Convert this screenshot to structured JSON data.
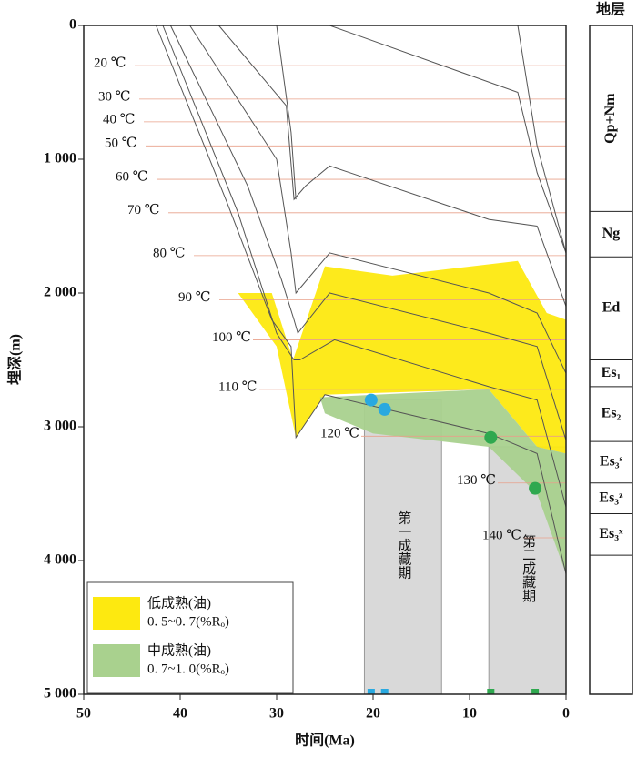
{
  "chart_data": {
    "type": "burial-history",
    "x_label": "时间(Ma)",
    "y_label": "埋深(m)",
    "xlim": [
      50,
      0
    ],
    "xticks": [
      50,
      40,
      30,
      20,
      10,
      0
    ],
    "ylim": [
      0,
      5000
    ],
    "yticks": [
      0,
      {
        "value": 1000,
        "label": "1 000"
      },
      {
        "value": 2000,
        "label": "2 000"
      },
      {
        "value": 3000,
        "label": "3 000"
      },
      {
        "value": 4000,
        "label": "4 000"
      },
      {
        "value": 5000,
        "label": "5 000"
      }
    ],
    "zones": [
      {
        "name": "低成熟(油)",
        "range": "0. 5~0. 7(%Rₒ)",
        "color": "#fde910",
        "x": [
          34,
          30.5,
          28.3,
          25,
          18,
          5,
          2,
          0,
          0,
          3,
          8,
          25,
          28,
          30
        ],
        "y": [
          2000,
          2000,
          2500,
          1800,
          1870,
          1760,
          2150,
          2200,
          3200,
          3150,
          2720,
          2760,
          3080,
          2400
        ]
      },
      {
        "name": "中成熟(油)",
        "range": "0. 7~1. 0(%Rₒ)",
        "color": "#a9d18e",
        "x": [
          25.5,
          8,
          3,
          0,
          0,
          3,
          8,
          20,
          25
        ],
        "y": [
          2780,
          2720,
          3150,
          3200,
          4100,
          3500,
          3150,
          3050,
          2900
        ]
      }
    ],
    "burial_lines": [
      {
        "x": [
          42.5,
          35,
          30.5,
          28.5,
          28,
          25,
          8,
          3,
          0
        ],
        "y": [
          0,
          1350,
          2200,
          2400,
          3080,
          2760,
          3050,
          3200,
          4100
        ]
      },
      {
        "x": [
          41.8,
          34,
          30,
          28.2,
          27.6,
          24,
          8,
          3,
          0
        ],
        "y": [
          0,
          1400,
          2300,
          2500,
          2500,
          2350,
          2700,
          2800,
          3600
        ]
      },
      {
        "x": [
          41,
          33,
          29.5,
          28.2,
          27.8,
          24.5,
          8,
          3,
          0
        ],
        "y": [
          0,
          1200,
          1900,
          2200,
          2300,
          2000,
          2300,
          2400,
          3100
        ]
      },
      {
        "x": [
          39,
          30,
          28.5,
          28,
          24.5,
          8,
          3,
          0
        ],
        "y": [
          0,
          1000,
          1700,
          2000,
          1700,
          2000,
          2150,
          2600
        ]
      },
      {
        "x": [
          36,
          29,
          28.2,
          27,
          24.5,
          8,
          3,
          0
        ],
        "y": [
          0,
          600,
          1300,
          1200,
          1050,
          1450,
          1500,
          2100
        ]
      },
      {
        "x": [
          30,
          28.5,
          28
        ],
        "y": [
          0,
          800,
          1300
        ]
      },
      {
        "x": [
          24.5,
          5,
          3,
          0
        ],
        "y": [
          0,
          500,
          1100,
          1700
        ]
      },
      {
        "x": [
          5,
          3,
          0
        ],
        "y": [
          0,
          900,
          1700
        ]
      }
    ],
    "isotherms": [
      {
        "label": "20 ℃",
        "depth": 300
      },
      {
        "label": "30 ℃",
        "depth": 550
      },
      {
        "label": "40 ℃",
        "depth": 720
      },
      {
        "label": "50 ℃",
        "depth": 900
      },
      {
        "label": "60 ℃",
        "depth": 1150
      },
      {
        "label": "70 ℃",
        "depth": 1400
      },
      {
        "label": "80 ℃",
        "depth": 1720
      },
      {
        "label": "90 ℃",
        "depth": 2050
      },
      {
        "label": "100 ℃",
        "depth": 2350
      },
      {
        "label": "110 ℃",
        "depth": 2720
      },
      {
        "label": "120 ℃",
        "depth": 3070
      },
      {
        "label": "130 ℃",
        "depth": 3420
      },
      {
        "label": "140 ℃",
        "depth": 3830
      }
    ],
    "periods": [
      {
        "label": "第一成藏期",
        "x": [
          20.9,
          12.9
        ],
        "y": [
          2800,
          5000
        ]
      },
      {
        "label": "第二成藏期",
        "x": [
          8,
          0
        ],
        "y": [
          3150,
          5000
        ]
      }
    ],
    "samples": [
      {
        "color": "#29a9e0",
        "x": [
          20.2,
          18.8
        ],
        "y": [
          2800,
          2870
        ]
      },
      {
        "color": "#2fa84f",
        "x": [
          7.8,
          3.2
        ],
        "y": [
          3080,
          3460
        ]
      }
    ],
    "strata": {
      "title": "地层",
      "layers": [
        {
          "name": "Qp+Nm",
          "top": 0,
          "bottom": 1390
        },
        {
          "name": "Ng",
          "top": 1390,
          "bottom": 1730
        },
        {
          "name": "Ed",
          "top": 1730,
          "bottom": 2500
        },
        {
          "name": "Es₁",
          "top": 2500,
          "bottom": 2700
        },
        {
          "name": "Es₂",
          "top": 2700,
          "bottom": 3110
        },
        {
          "name": "Es₃ˢ",
          "top": 3110,
          "bottom": 3420
        },
        {
          "name": "Es₃ᶻ",
          "top": 3420,
          "bottom": 3650
        },
        {
          "name": "Es₃ˣ",
          "top": 3650,
          "bottom": 3960
        }
      ]
    }
  }
}
